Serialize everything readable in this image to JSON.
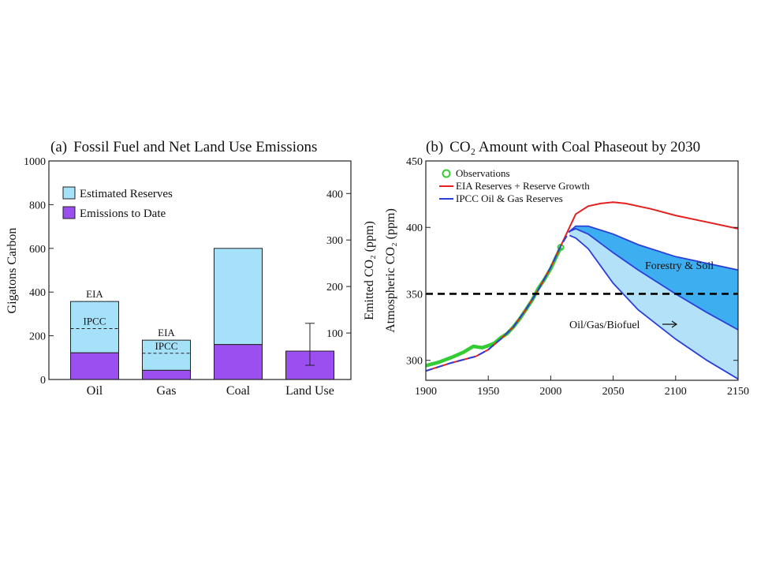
{
  "colors": {
    "reserves": "#a6e1fa",
    "emissions": "#9b4ff0",
    "bar_border": "#222222",
    "observations": "#33cc33",
    "eia": "#e52020",
    "ipcc": "#2a3fd8",
    "forestry_fill": "#3daef0",
    "biofuel_fill": "#b3e2f8",
    "threshold": "#000000"
  },
  "chart_data": [
    {
      "type": "bar",
      "title_prefix": "(a)",
      "title": "Fossil Fuel and Net Land Use Emissions",
      "ylabel": "Gigatons Carbon",
      "ylabel_right": "Emitted CO₂ (ppm)",
      "ylim": [
        0,
        1000
      ],
      "yticks": [
        0,
        200,
        400,
        600,
        800,
        1000
      ],
      "ylim_right": [
        0,
        470
      ],
      "yticks_right": [
        100,
        200,
        300,
        400
      ],
      "categories": [
        "Oil",
        "Gas",
        "Coal",
        "Land Use"
      ],
      "series": [
        {
          "name": "Emissions to Date",
          "values": [
            122,
            42,
            160,
            130
          ]
        },
        {
          "name": "Estimated Reserves",
          "values": [
            235,
            138,
            440,
            0
          ]
        }
      ],
      "markers": [
        {
          "category": "Oil",
          "label": "EIA",
          "value": 357
        },
        {
          "category": "Oil",
          "label": "IPCC",
          "value": 233
        },
        {
          "category": "Gas",
          "label": "EIA",
          "value": 180
        },
        {
          "category": "Gas",
          "label": "IPCC",
          "value": 120
        }
      ],
      "error_bar": {
        "category": "Land Use",
        "low": 65,
        "high": 257
      },
      "legend": "top-left"
    },
    {
      "type": "line",
      "title_prefix": "(b)",
      "title": "CO₂ Amount with Coal Phaseout by 2030",
      "ylabel": "Atmospheric CO₂ (ppm)",
      "xlim": [
        1900,
        2150
      ],
      "ylim": [
        285,
        450
      ],
      "xticks": [
        1900,
        1950,
        2000,
        2050,
        2100,
        2150
      ],
      "yticks": [
        300,
        350,
        400,
        450
      ],
      "threshold": 350,
      "legend": "top-left",
      "series": [
        {
          "name": "Observations",
          "x": [
            1900,
            1910,
            1920,
            1930,
            1938,
            1945,
            1950,
            1955,
            1960,
            1965,
            1970,
            1975,
            1980,
            1985,
            1990,
            1995,
            2000,
            2005,
            2008
          ],
          "y": [
            296,
            298.5,
            302,
            306,
            310.5,
            309.5,
            311,
            313,
            317,
            320,
            325,
            331,
            338,
            345,
            354,
            361,
            369,
            379,
            385
          ]
        },
        {
          "name": "EIA Reserves + Reserve Growth",
          "x": [
            1900,
            1920,
            1940,
            1950,
            1960,
            1970,
            1980,
            1990,
            2000,
            2008,
            2015,
            2020,
            2030,
            2040,
            2050,
            2060,
            2080,
            2100,
            2120,
            2150
          ],
          "y": [
            292,
            298,
            303,
            308,
            316,
            325,
            338,
            353,
            370,
            386,
            400,
            410,
            416,
            418,
            419,
            418,
            414,
            409,
            405,
            399
          ]
        },
        {
          "name": "IPCC Oil & Gas Reserves",
          "x": [
            1900,
            1920,
            1940,
            1950,
            1960,
            1970,
            1980,
            1990,
            2000,
            2008,
            2015,
            2020
          ],
          "y": [
            292,
            298,
            303,
            308,
            316,
            325,
            338,
            353,
            370,
            386,
            397,
            400
          ]
        },
        {
          "name": "Forestry & Soil (upper)",
          "x": [
            2015,
            2020,
            2030,
            2050,
            2070,
            2100,
            2125,
            2150
          ],
          "y": [
            397,
            401,
            401,
            395,
            387,
            378,
            373,
            368
          ]
        },
        {
          "name": "Forestry & Soil (lower)",
          "x": [
            2015,
            2020,
            2030,
            2050,
            2070,
            2100,
            2125,
            2150
          ],
          "y": [
            397,
            399,
            395,
            381,
            368,
            350,
            336,
            323
          ]
        },
        {
          "name": "Oil/Gas/Biofuel (lower)",
          "x": [
            2015,
            2020,
            2030,
            2050,
            2070,
            2100,
            2125,
            2150
          ],
          "y": [
            394,
            392,
            384,
            358,
            338,
            316,
            300,
            286
          ]
        }
      ],
      "annotations": [
        "Forestry & Soil",
        "Oil/Gas/Biofuel"
      ]
    }
  ]
}
